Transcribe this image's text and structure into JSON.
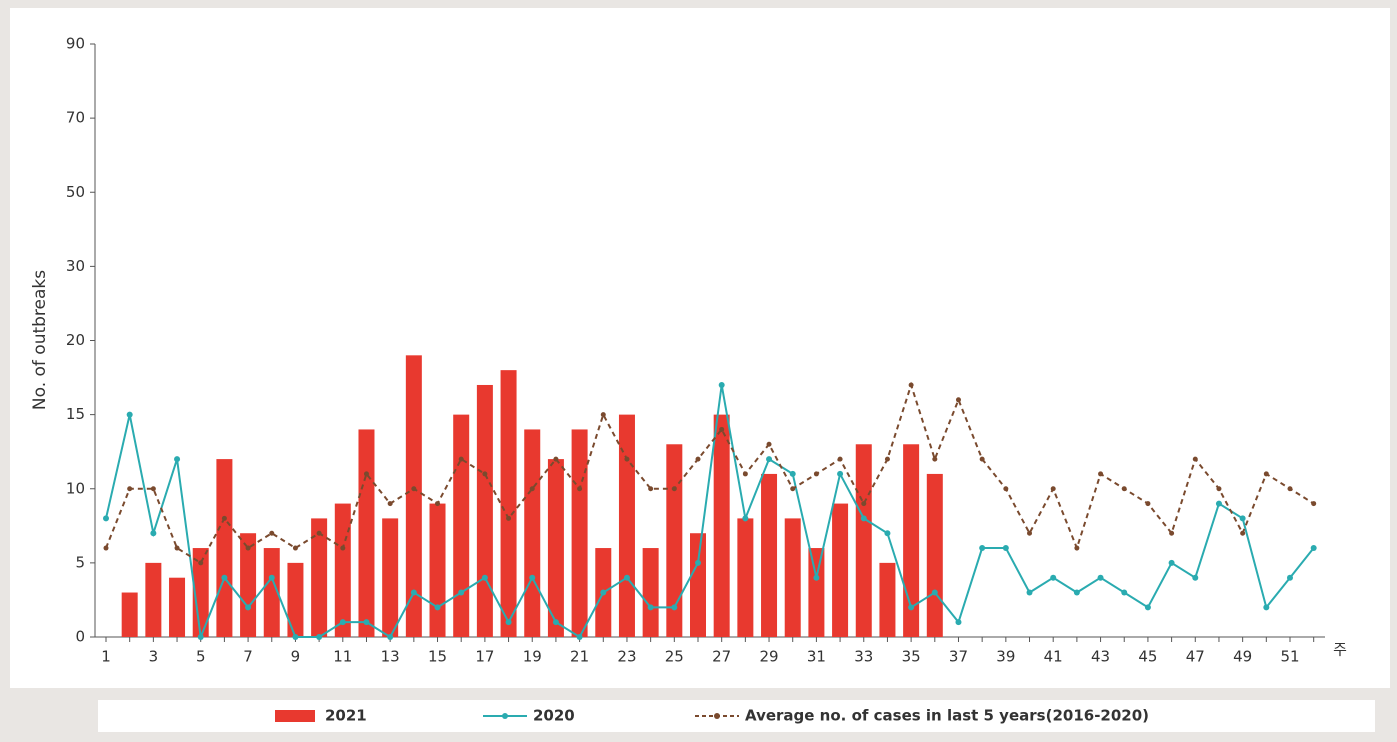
{
  "chart_data": {
    "type": "bar",
    "y_axis_label": "No. of outbreaks",
    "x_axis_label": "주",
    "categories": [
      1,
      null,
      3,
      null,
      5,
      null,
      7,
      null,
      9,
      null,
      11,
      null,
      13,
      null,
      15,
      null,
      17,
      null,
      19,
      null,
      21,
      null,
      23,
      null,
      25,
      null,
      27,
      null,
      29,
      null,
      31,
      null,
      33,
      null,
      35,
      null,
      37,
      null,
      39,
      null,
      41,
      null,
      43,
      null,
      45,
      null,
      47,
      null,
      49,
      null,
      51,
      null
    ],
    "ylim": [
      0,
      90
    ],
    "yticks": [
      0,
      5,
      10,
      15,
      20,
      30,
      50,
      70,
      90
    ],
    "series": [
      {
        "name": "2021",
        "type": "bar",
        "color": "#e8392f",
        "values": [
          null,
          3,
          5,
          4,
          6,
          12,
          7,
          6,
          5,
          8,
          9,
          14,
          8,
          19,
          9,
          15,
          17,
          18,
          14,
          12,
          14,
          6,
          15,
          6,
          13,
          7,
          15,
          8,
          11,
          8,
          6,
          9,
          13,
          5,
          13,
          11,
          null,
          null,
          null,
          null,
          null,
          null,
          null,
          null,
          null,
          null,
          null,
          null,
          null,
          null,
          null,
          null
        ]
      },
      {
        "name": "2020",
        "type": "line",
        "color": "#2aabb0",
        "dashed": false,
        "values": [
          8,
          15,
          7,
          12,
          0,
          4,
          2,
          4,
          0,
          0,
          1,
          1,
          0,
          3,
          2,
          3,
          4,
          1,
          4,
          1,
          0,
          3,
          4,
          2,
          2,
          5,
          17,
          8,
          12,
          11,
          4,
          11,
          8,
          7,
          2,
          3,
          1,
          6,
          6,
          3,
          4,
          3,
          4,
          3,
          2,
          5,
          4,
          9,
          8,
          2,
          4,
          6
        ]
      },
      {
        "name": "Average no. of cases in last 5 years(2016-2020)",
        "type": "line",
        "color": "#7a4a2e",
        "dashed": true,
        "values": [
          6,
          10,
          10,
          6,
          5,
          8,
          6,
          7,
          6,
          7,
          6,
          11,
          9,
          10,
          9,
          12,
          11,
          8,
          10,
          12,
          10,
          15,
          12,
          10,
          10,
          12,
          14,
          11,
          13,
          10,
          11,
          12,
          9,
          12,
          17,
          12,
          16,
          12,
          10,
          7,
          10,
          6,
          11,
          10,
          9,
          7,
          12,
          10,
          7,
          11,
          10,
          9
        ]
      }
    ]
  }
}
